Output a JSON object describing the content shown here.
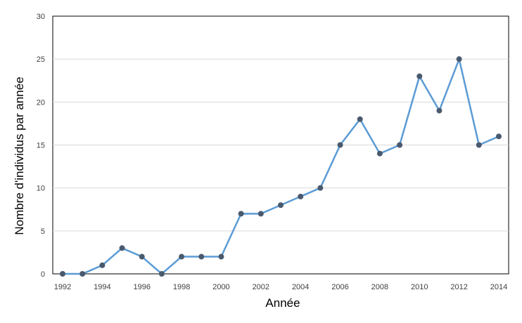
{
  "chart_data": {
    "type": "line",
    "title": "",
    "xlabel": "Année",
    "ylabel": "Nombre d'individus par année",
    "x": [
      1992,
      1993,
      1994,
      1995,
      1996,
      1997,
      1998,
      1999,
      2000,
      2001,
      2002,
      2003,
      2004,
      2005,
      2006,
      2007,
      2008,
      2009,
      2010,
      2011,
      2012,
      2013,
      2014
    ],
    "series": [
      {
        "values": [
          0,
          0,
          1,
          3,
          2,
          0,
          2,
          2,
          2,
          7,
          7,
          8,
          9,
          10,
          15,
          18,
          14,
          15,
          23,
          19,
          25,
          15,
          16
        ]
      }
    ],
    "xticks": [
      "1992",
      "1994",
      "1996",
      "1998",
      "2000",
      "2002",
      "2004",
      "2006",
      "2008",
      "2010",
      "2012",
      "2014"
    ],
    "yticks": [
      "0",
      "5",
      "10",
      "15",
      "20",
      "25",
      "30"
    ],
    "ylim": [
      0,
      30
    ],
    "grid": "horizontal",
    "line_color": "#5b9bd5",
    "marker_color": "#4a5a6e",
    "grid_color": "#d9d9d9"
  }
}
